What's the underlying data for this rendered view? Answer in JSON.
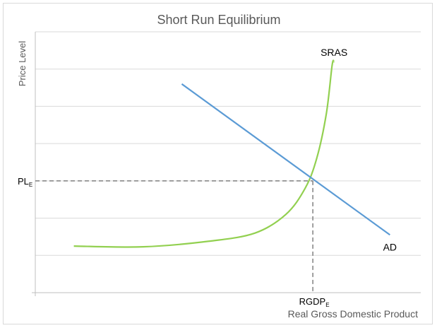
{
  "chart_data": {
    "type": "line",
    "title": "Short Run Equilibrium",
    "xlabel": "Real Gross Domestic Product",
    "ylabel": "Price Level",
    "xlim": [
      0,
      10
    ],
    "ylim": [
      0,
      7
    ],
    "grid": {
      "horizontal": true,
      "vertical": false
    },
    "series": [
      {
        "name": "SRAS",
        "color": "#92d050",
        "points": [
          [
            1.0,
            1.25
          ],
          [
            2.8,
            1.23
          ],
          [
            4.5,
            1.38
          ],
          [
            5.7,
            1.6
          ],
          [
            6.5,
            2.1
          ],
          [
            7.0,
            2.8
          ],
          [
            7.3,
            3.6
          ],
          [
            7.55,
            4.8
          ],
          [
            7.7,
            6.1
          ],
          [
            7.75,
            6.2
          ]
        ]
      },
      {
        "name": "AD",
        "color": "#5b9bd5",
        "points": [
          [
            3.8,
            5.6
          ],
          [
            9.2,
            1.55
          ]
        ]
      }
    ],
    "equilibrium": {
      "x": 7.2,
      "y": 3.0,
      "x_tick_label": "RGDP",
      "x_tick_sub": "E",
      "y_tick_label": "PL",
      "y_tick_sub": "E",
      "guide_color": "#808080"
    },
    "grid_color": "#d9d9d9",
    "axis_color": "#bfbfbf"
  }
}
